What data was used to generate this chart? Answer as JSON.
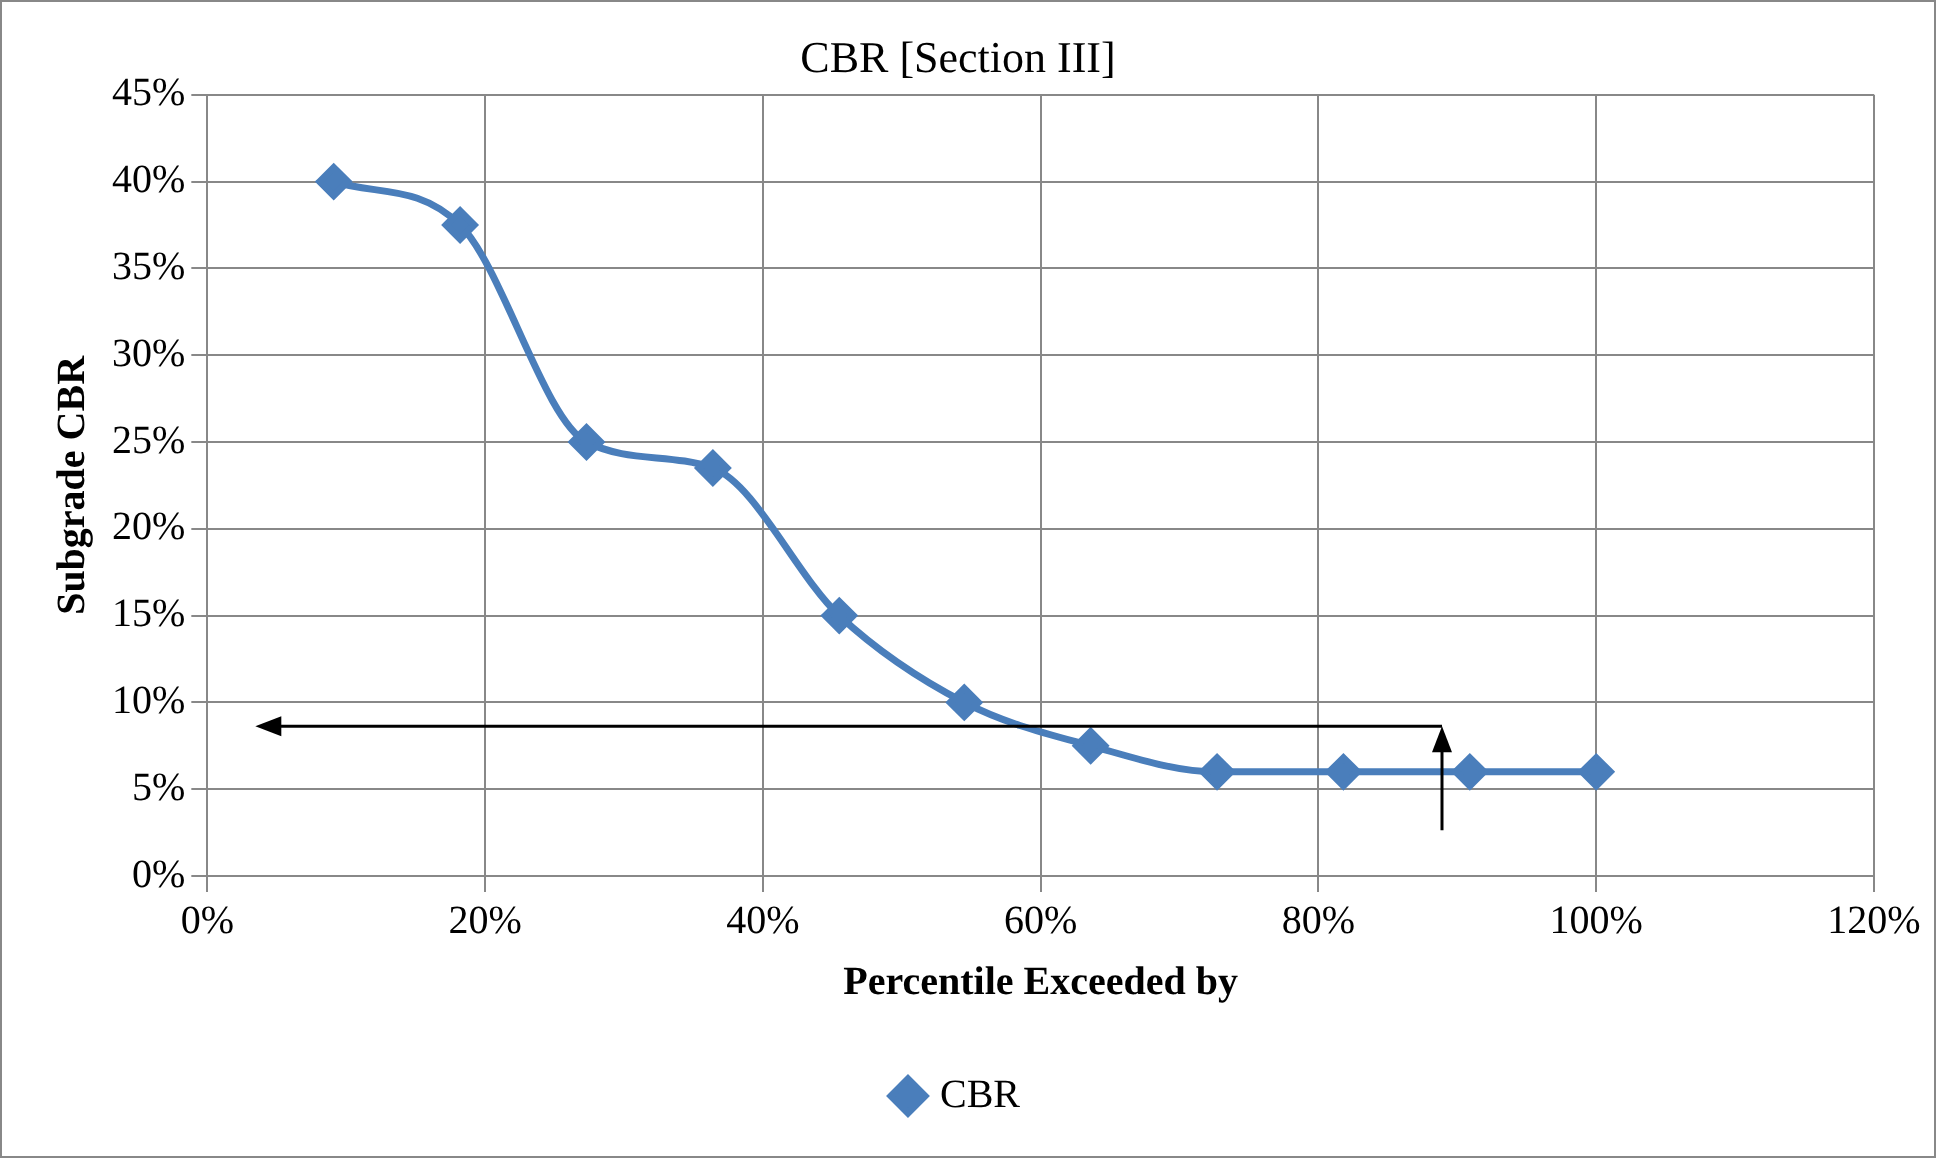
{
  "chart_data": {
    "type": "line",
    "title": "CBR [Section III]",
    "xlabel": "Percentile Exceeded by",
    "ylabel": "Subgrade CBR",
    "x": [
      9.1,
      18.2,
      27.3,
      36.4,
      45.5,
      54.5,
      63.6,
      72.7,
      81.8,
      90.9,
      100
    ],
    "series": [
      {
        "name": "CBR",
        "color": "#4a7ebb",
        "values": [
          40,
          37.5,
          25,
          23.5,
          15,
          10,
          7.5,
          6,
          6,
          6,
          6
        ]
      }
    ],
    "xlim": [
      0,
      120
    ],
    "xticks": [
      {
        "value": 0,
        "label": "0%"
      },
      {
        "value": 20,
        "label": "20%"
      },
      {
        "value": 40,
        "label": "40%"
      },
      {
        "value": 60,
        "label": "60%"
      },
      {
        "value": 80,
        "label": "80%"
      },
      {
        "value": 100,
        "label": "100%"
      },
      {
        "value": 120,
        "label": "120%"
      }
    ],
    "ylim": [
      0,
      45
    ],
    "yticks": [
      {
        "value": 0,
        "label": "0%"
      },
      {
        "value": 5,
        "label": "5%"
      },
      {
        "value": 10,
        "label": "10%"
      },
      {
        "value": 15,
        "label": "15%"
      },
      {
        "value": 20,
        "label": "20%"
      },
      {
        "value": 25,
        "label": "25%"
      },
      {
        "value": 30,
        "label": "30%"
      },
      {
        "value": 35,
        "label": "35%"
      },
      {
        "value": 40,
        "label": "40%"
      },
      {
        "value": 45,
        "label": "45%"
      }
    ],
    "grid": true,
    "legend": "bottom",
    "marker": "diamond",
    "line_style": "solid"
  }
}
